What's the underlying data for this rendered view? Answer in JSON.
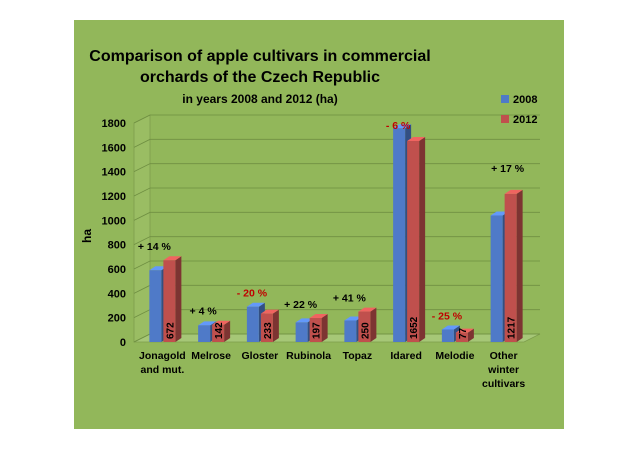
{
  "chart_data": {
    "type": "bar",
    "title_lines": [
      "Comparison of apple cultivars in commercial",
      "orchards of the Czech Republic"
    ],
    "subtitle": "in years 2008 and 2012 (ha)",
    "ylabel": "ha",
    "xlabel": "",
    "ylim": [
      0,
      1800
    ],
    "yticks": [
      0,
      200,
      400,
      600,
      800,
      1000,
      1200,
      1400,
      1600,
      1800
    ],
    "categories": [
      [
        "Jonagold",
        "and mut."
      ],
      [
        "Melrose"
      ],
      [
        "Gloster"
      ],
      [
        "Rubinola"
      ],
      [
        "Topaz"
      ],
      [
        "Idared"
      ],
      [
        "Melodie"
      ],
      [
        "Other",
        "winter",
        "cultivars"
      ]
    ],
    "series": [
      {
        "name": "2008",
        "color": "#4f7ac8",
        "values": [
          590,
          137,
          290,
          161,
          177,
          1757,
          103,
          1040
        ]
      },
      {
        "name": "2012",
        "color": "#c0504d",
        "values": [
          672,
          142,
          233,
          197,
          250,
          1652,
          77,
          1217
        ]
      }
    ],
    "data_labels": [
      "672",
      "142",
      "233",
      "197",
      "250",
      "1652",
      "77",
      "1217"
    ],
    "change_labels": [
      "+ 14 %",
      "+ 4 %",
      "- 20 %",
      "+ 22 %",
      "+ 41 %",
      "- 6 %",
      "- 25 %",
      "+ 17 %"
    ],
    "change_colors": [
      "#000000",
      "#000000",
      "#c00000",
      "#000000",
      "#000000",
      "#c00000",
      "#c00000",
      "#000000"
    ],
    "legend": [
      "2008",
      "2012"
    ],
    "legend_position": "top-right",
    "grid": true
  }
}
